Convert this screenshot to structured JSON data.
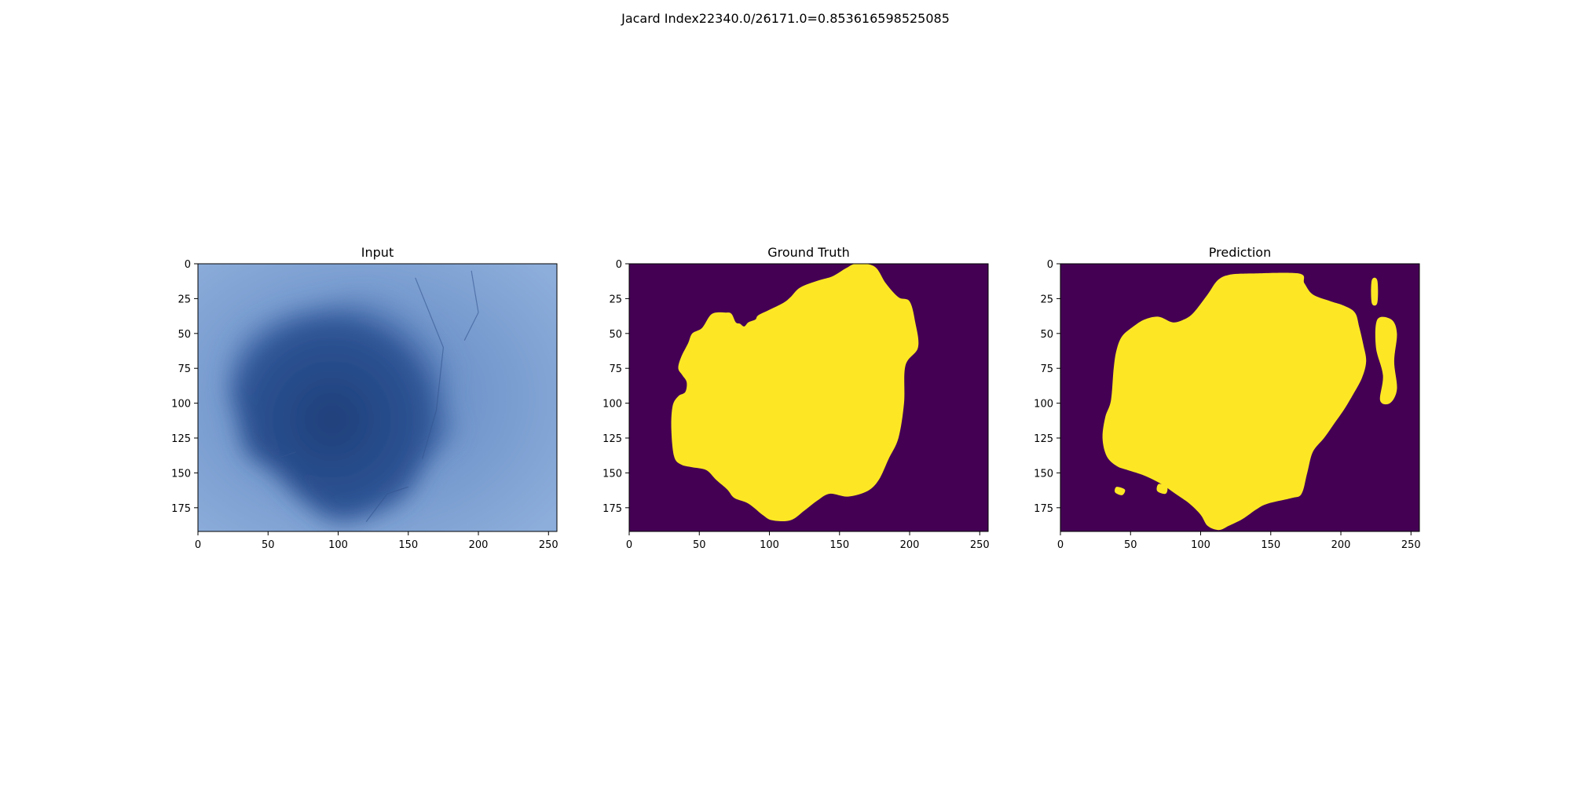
{
  "figure": {
    "suptitle": "Jacard Index22340.0/26171.0=0.853616598525085"
  },
  "colors": {
    "mask_background": "#440154",
    "mask_foreground": "#fde725",
    "skin_light": "#8daedb",
    "skin_mid": "#5d84c0",
    "lesion_dark": "#1e3f7a",
    "axis": "#000000"
  },
  "chart_data": [
    {
      "type": "image",
      "title": "Input",
      "image_content": "dermoscopy-lesion-photo",
      "xlim": [
        0,
        256
      ],
      "ylim": [
        192,
        0
      ],
      "xticks": [
        0,
        50,
        100,
        150,
        200,
        250
      ],
      "yticks": [
        0,
        25,
        50,
        75,
        100,
        125,
        150,
        175
      ],
      "lesion_outline": [
        [
          30,
          55
        ],
        [
          55,
          38
        ],
        [
          85,
          30
        ],
        [
          120,
          22
        ],
        [
          155,
          26
        ],
        [
          175,
          45
        ],
        [
          185,
          65
        ],
        [
          178,
          95
        ],
        [
          185,
          120
        ],
        [
          165,
          140
        ],
        [
          150,
          165
        ],
        [
          130,
          178
        ],
        [
          100,
          185
        ],
        [
          75,
          170
        ],
        [
          55,
          150
        ],
        [
          35,
          135
        ],
        [
          28,
          110
        ],
        [
          22,
          85
        ]
      ]
    },
    {
      "type": "image",
      "title": "Ground Truth",
      "colormap": "viridis",
      "classes": [
        0,
        1
      ],
      "xlim": [
        0,
        256
      ],
      "ylim": [
        192,
        0
      ],
      "xticks": [
        0,
        50,
        100,
        150,
        200,
        250
      ],
      "yticks": [
        0,
        25,
        50,
        75,
        100,
        125,
        150,
        175
      ],
      "mask_outline": [
        [
          162,
          0
        ],
        [
          175,
          2
        ],
        [
          183,
          14
        ],
        [
          192,
          24
        ],
        [
          200,
          27
        ],
        [
          204,
          42
        ],
        [
          206,
          60
        ],
        [
          197,
          73
        ],
        [
          196,
          100
        ],
        [
          192,
          125
        ],
        [
          185,
          140
        ],
        [
          178,
          155
        ],
        [
          170,
          163
        ],
        [
          156,
          167
        ],
        [
          143,
          165
        ],
        [
          134,
          170
        ],
        [
          125,
          177
        ],
        [
          115,
          184
        ],
        [
          102,
          184
        ],
        [
          95,
          180
        ],
        [
          85,
          172
        ],
        [
          75,
          168
        ],
        [
          70,
          162
        ],
        [
          62,
          155
        ],
        [
          55,
          148
        ],
        [
          45,
          146
        ],
        [
          37,
          144
        ],
        [
          32,
          138
        ],
        [
          30,
          118
        ],
        [
          31,
          102
        ],
        [
          35,
          95
        ],
        [
          40,
          92
        ],
        [
          41,
          85
        ],
        [
          38,
          80
        ],
        [
          35,
          75
        ],
        [
          37,
          67
        ],
        [
          42,
          57
        ],
        [
          45,
          50
        ],
        [
          52,
          46
        ],
        [
          59,
          36
        ],
        [
          69,
          35
        ],
        [
          73,
          36
        ],
        [
          76,
          42
        ],
        [
          79,
          43
        ],
        [
          82,
          45
        ],
        [
          85,
          42
        ],
        [
          90,
          40
        ],
        [
          92,
          37
        ],
        [
          100,
          33
        ],
        [
          110,
          28
        ],
        [
          115,
          24
        ],
        [
          122,
          17
        ],
        [
          135,
          12
        ],
        [
          145,
          9
        ],
        [
          155,
          3
        ]
      ]
    },
    {
      "type": "image",
      "title": "Prediction",
      "colormap": "viridis",
      "classes": [
        0,
        1
      ],
      "xlim": [
        0,
        256
      ],
      "ylim": [
        192,
        0
      ],
      "xticks": [
        0,
        50,
        100,
        150,
        200,
        250
      ],
      "yticks": [
        0,
        25,
        50,
        75,
        100,
        125,
        150,
        175
      ],
      "mask_outline": [
        [
          120,
          8
        ],
        [
          136,
          7
        ],
        [
          170,
          7
        ],
        [
          174,
          14
        ],
        [
          180,
          22
        ],
        [
          193,
          27
        ],
        [
          202,
          30
        ],
        [
          210,
          35
        ],
        [
          213,
          45
        ],
        [
          216,
          58
        ],
        [
          218,
          70
        ],
        [
          215,
          82
        ],
        [
          208,
          95
        ],
        [
          202,
          105
        ],
        [
          195,
          115
        ],
        [
          188,
          125
        ],
        [
          180,
          135
        ],
        [
          176,
          150
        ],
        [
          172,
          165
        ],
        [
          165,
          168
        ],
        [
          148,
          172
        ],
        [
          140,
          176
        ],
        [
          130,
          183
        ],
        [
          120,
          188
        ],
        [
          113,
          191
        ],
        [
          105,
          188
        ],
        [
          100,
          180
        ],
        [
          92,
          172
        ],
        [
          82,
          165
        ],
        [
          72,
          158
        ],
        [
          60,
          152
        ],
        [
          48,
          148
        ],
        [
          40,
          145
        ],
        [
          33,
          138
        ],
        [
          30,
          125
        ],
        [
          32,
          110
        ],
        [
          36,
          98
        ],
        [
          38,
          75
        ],
        [
          40,
          62
        ],
        [
          44,
          52
        ],
        [
          52,
          45
        ],
        [
          60,
          40
        ],
        [
          70,
          38
        ],
        [
          80,
          42
        ],
        [
          88,
          40
        ],
        [
          95,
          35
        ],
        [
          105,
          22
        ],
        [
          112,
          12
        ]
      ],
      "outlier_blobs": [
        [
          [
            226,
            40
          ],
          [
            236,
            40
          ],
          [
            240,
            50
          ],
          [
            238,
            70
          ],
          [
            240,
            90
          ],
          [
            235,
            100
          ],
          [
            228,
            98
          ],
          [
            230,
            80
          ],
          [
            225,
            60
          ]
        ],
        [
          [
            222,
            12
          ],
          [
            226,
            12
          ],
          [
            226,
            28
          ],
          [
            222,
            28
          ]
        ],
        [
          [
            70,
            158
          ],
          [
            76,
            160
          ],
          [
            75,
            165
          ],
          [
            69,
            163
          ]
        ],
        [
          [
            40,
            160
          ],
          [
            46,
            162
          ],
          [
            44,
            166
          ],
          [
            39,
            164
          ]
        ]
      ]
    }
  ]
}
